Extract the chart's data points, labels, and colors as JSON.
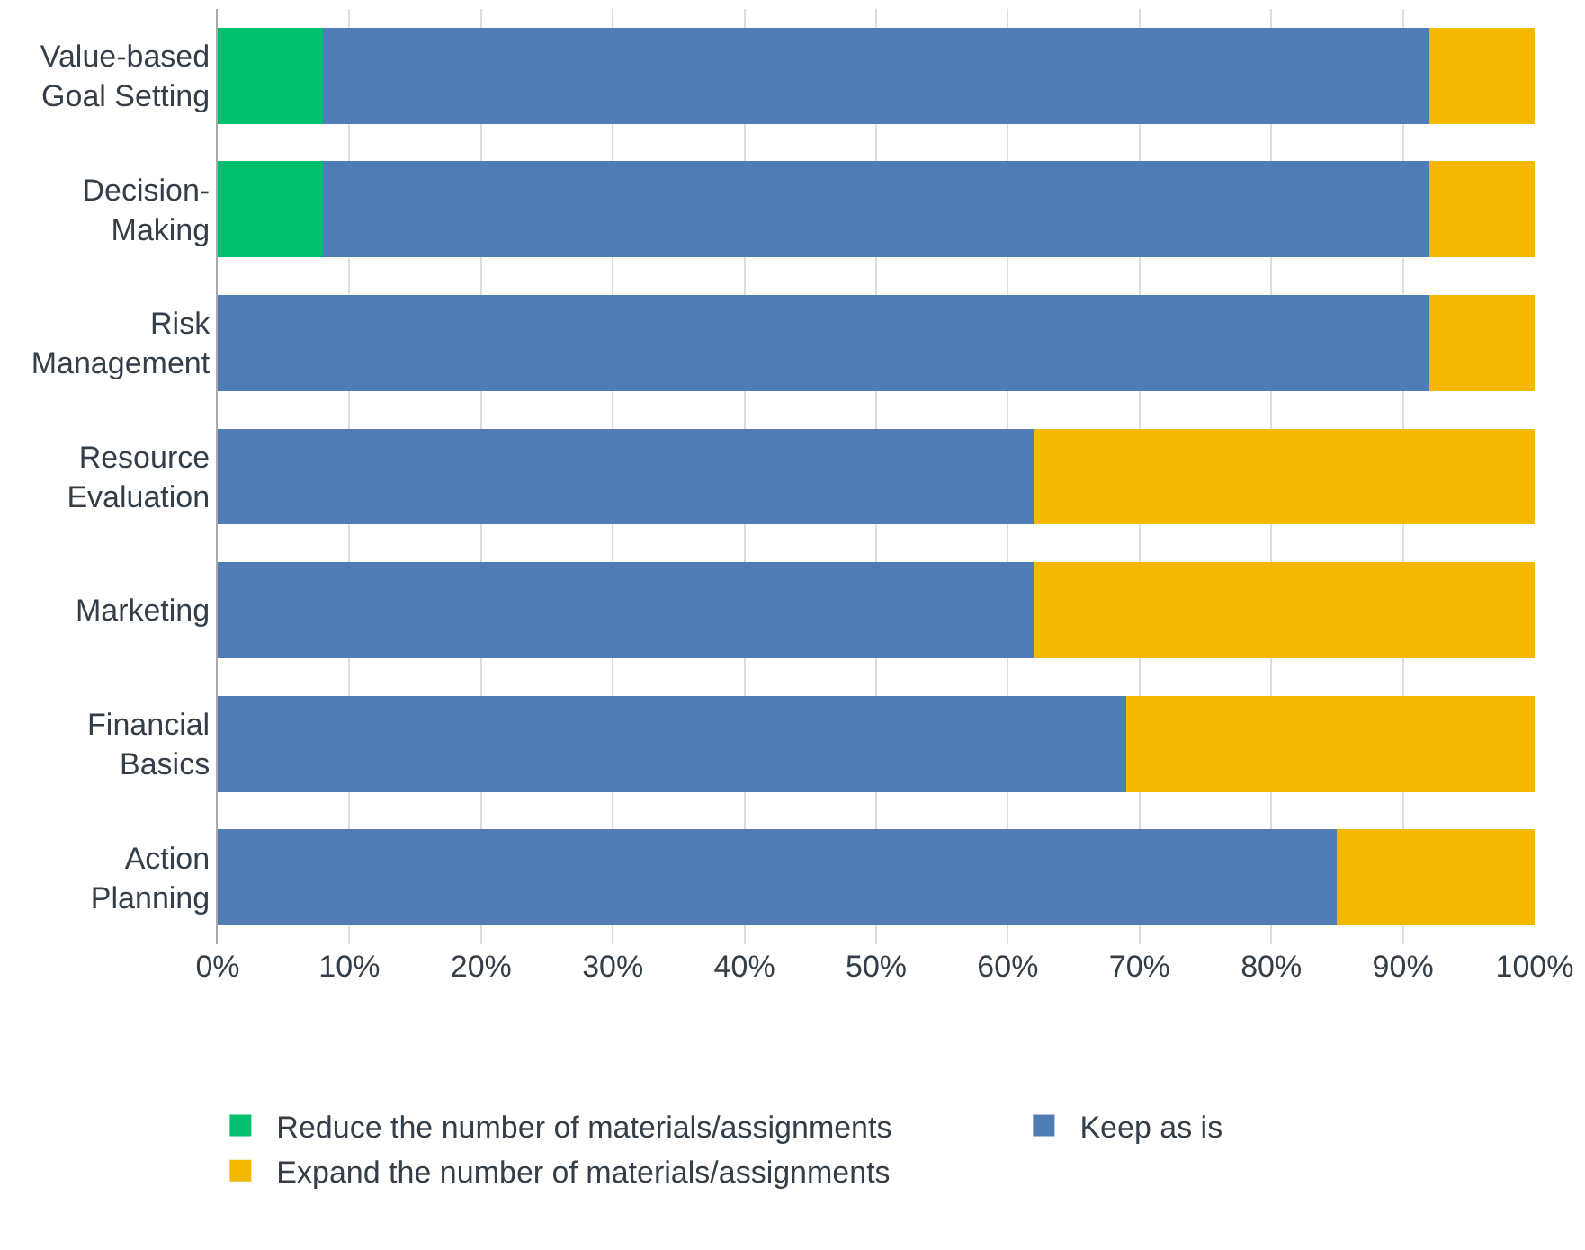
{
  "chart_data": {
    "type": "bar",
    "orientation": "horizontal",
    "stacked": true,
    "categories": [
      "Value-based\nGoal Setting",
      "Decision-\nMaking",
      "Risk\nManagement",
      "Resource\nEvaluation",
      "Marketing",
      "Financial\nBasics",
      "Action\nPlanning"
    ],
    "series": [
      {
        "name": "Reduce the number of materials/assignments",
        "color": "#00bf6f",
        "values": [
          8,
          8,
          0,
          0,
          0,
          0,
          0
        ]
      },
      {
        "name": "Keep as is",
        "color": "#507cb6",
        "values": [
          84,
          84,
          92,
          62,
          62,
          69,
          85
        ]
      },
      {
        "name": "Expand the number of materials/assignments",
        "color": "#f5b800",
        "values": [
          8,
          8,
          8,
          38,
          38,
          31,
          15
        ]
      }
    ],
    "xlim": [
      0,
      100
    ],
    "xticks": [
      {
        "value": 0,
        "label": "0%"
      },
      {
        "value": 10,
        "label": "10%"
      },
      {
        "value": 20,
        "label": "20%"
      },
      {
        "value": 30,
        "label": "30%"
      },
      {
        "value": 40,
        "label": "40%"
      },
      {
        "value": 50,
        "label": "50%"
      },
      {
        "value": 60,
        "label": "60%"
      },
      {
        "value": 70,
        "label": "70%"
      },
      {
        "value": 80,
        "label": "80%"
      },
      {
        "value": 90,
        "label": "90%"
      },
      {
        "value": 100,
        "label": "100%"
      }
    ],
    "grid": "x",
    "legend": "bottom"
  }
}
